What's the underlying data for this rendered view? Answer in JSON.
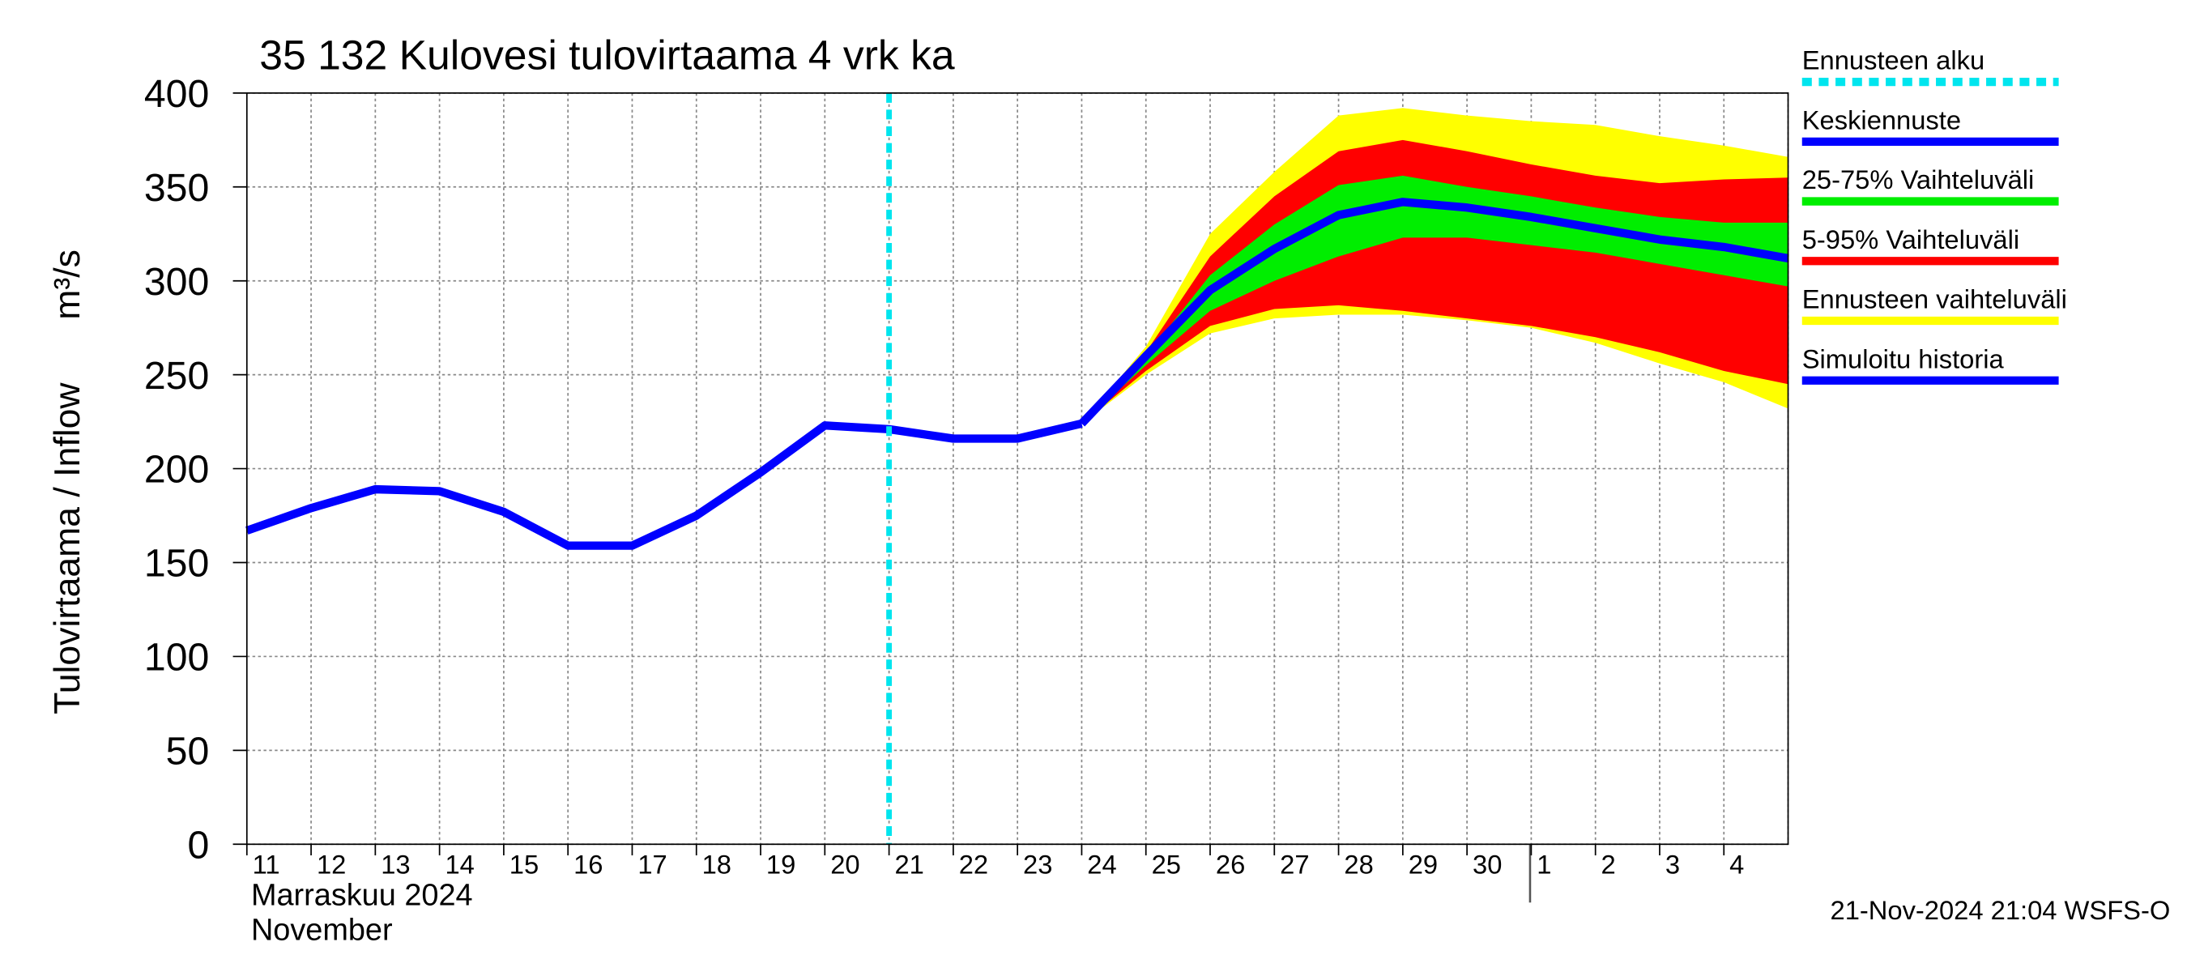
{
  "chart_data": {
    "type": "line",
    "title": "35 132 Kulovesi tulovirtaama 4 vrk ka",
    "y_label": "Tulovirtaama / Inflow",
    "y_unit": "m³/s",
    "month_label": "Marraskuu 2024",
    "month_label_en": "November",
    "timestamp": "21-Nov-2024 21:04 WSFS-O",
    "categories": [
      "11",
      "12",
      "13",
      "14",
      "15",
      "16",
      "17",
      "18",
      "19",
      "20",
      "21",
      "22",
      "23",
      "24",
      "25",
      "26",
      "27",
      "28",
      "29",
      "30",
      "1",
      "2",
      "3",
      "4",
      null
    ],
    "forecast_start": "21",
    "forecast_start_label": "Ennusteen alku",
    "forecast_start_color": "#00e5ee",
    "ylim": [
      0,
      400
    ],
    "yticks": [
      0,
      50,
      100,
      150,
      200,
      250,
      300,
      350,
      400
    ],
    "grid": true,
    "series": [
      {
        "name": "Keskiennuste",
        "color": "#0000ff",
        "values": [
          null,
          null,
          null,
          null,
          null,
          null,
          null,
          null,
          null,
          null,
          null,
          null,
          null,
          224,
          260,
          295,
          317,
          335,
          342,
          339,
          334,
          328,
          322,
          318,
          312
        ]
      },
      {
        "name": "25-75% Vaihteluväli",
        "color": "#00ee00",
        "low": [
          null,
          null,
          null,
          null,
          null,
          null,
          null,
          null,
          null,
          null,
          null,
          null,
          null,
          224,
          255,
          284,
          300,
          313,
          323,
          323,
          319,
          315,
          309,
          303,
          297
        ],
        "high": [
          null,
          null,
          null,
          null,
          null,
          null,
          null,
          null,
          null,
          null,
          null,
          null,
          null,
          224,
          260,
          303,
          330,
          351,
          356,
          350,
          345,
          339,
          334,
          331,
          331
        ]
      },
      {
        "name": "5-95% Vaihteluväli",
        "color": "#ff0000",
        "low": [
          null,
          null,
          null,
          null,
          null,
          null,
          null,
          null,
          null,
          null,
          null,
          null,
          null,
          224,
          252,
          276,
          285,
          287,
          284,
          280,
          276,
          270,
          262,
          252,
          245
        ],
        "high": [
          null,
          null,
          null,
          null,
          null,
          null,
          null,
          null,
          null,
          null,
          null,
          null,
          null,
          224,
          262,
          313,
          345,
          369,
          375,
          369,
          362,
          356,
          352,
          354,
          355
        ]
      },
      {
        "name": "Ennusteen vaihteluväli",
        "color": "#ffff00",
        "low": [
          null,
          null,
          null,
          null,
          null,
          null,
          null,
          null,
          null,
          null,
          null,
          null,
          null,
          224,
          250,
          272,
          280,
          282,
          282,
          279,
          275,
          267,
          256,
          246,
          232
        ],
        "high": [
          null,
          null,
          null,
          null,
          null,
          null,
          null,
          null,
          null,
          null,
          null,
          null,
          null,
          224,
          265,
          325,
          358,
          388,
          392,
          388,
          385,
          383,
          377,
          372,
          366
        ]
      },
      {
        "name": "Simuloitu historia",
        "color": "#0000ff",
        "values": [
          167,
          179,
          189,
          188,
          177,
          159,
          159,
          175,
          198,
          223,
          221,
          216,
          216,
          224,
          null,
          null,
          null,
          null,
          null,
          null,
          null,
          null,
          null,
          null,
          null
        ]
      }
    ]
  }
}
